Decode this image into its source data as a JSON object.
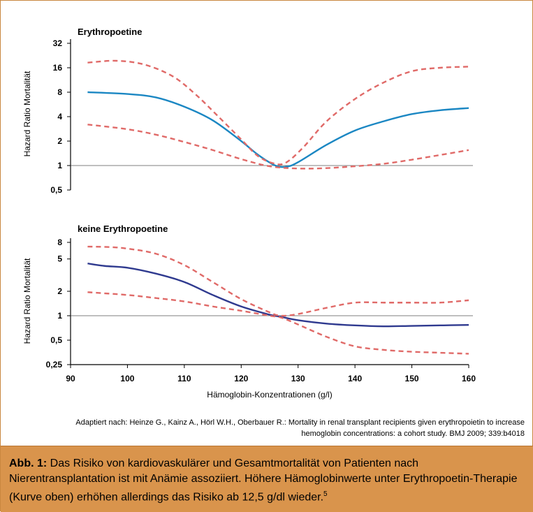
{
  "chart_data": [
    {
      "type": "line",
      "title": "Erythropoetine",
      "ylabel": "Hazard Ratio Mortalität",
      "xlabel": "",
      "yscale": "log2",
      "ylim": [
        0.5,
        32
      ],
      "yticks": [
        "32",
        "16",
        "8",
        "4",
        "2",
        "1",
        "0,5"
      ],
      "ytick_values": [
        32,
        16,
        8,
        4,
        2,
        1,
        0.5
      ],
      "xlim": [
        90,
        160
      ],
      "reference_line": 1,
      "series": [
        {
          "role": "estimate",
          "color": "#1b87c3",
          "style": "solid",
          "x": [
            93,
            100,
            105,
            110,
            115,
            120,
            123,
            126,
            128,
            130,
            135,
            140,
            145,
            150,
            155,
            160
          ],
          "y": [
            8.0,
            7.6,
            6.9,
            5.3,
            3.6,
            2.0,
            1.35,
            1.0,
            0.97,
            1.1,
            1.8,
            2.7,
            3.5,
            4.3,
            4.8,
            5.1
          ]
        },
        {
          "role": "upper CI",
          "color": "#e06a68",
          "style": "dashed",
          "x": [
            93,
            98,
            103,
            108,
            112,
            116,
            120,
            123,
            126,
            128,
            131,
            135,
            140,
            145,
            150,
            155,
            160
          ],
          "y": [
            18.5,
            19.5,
            17.5,
            12.5,
            7.5,
            4.0,
            2.1,
            1.3,
            1.05,
            1.1,
            1.7,
            3.5,
            6.6,
            10.5,
            14.5,
            16.0,
            16.5
          ]
        },
        {
          "role": "lower CI",
          "color": "#e06a68",
          "style": "dashed",
          "x": [
            93,
            100,
            105,
            110,
            115,
            120,
            125,
            130,
            135,
            140,
            145,
            150,
            155,
            160
          ],
          "y": [
            3.2,
            2.8,
            2.4,
            1.95,
            1.55,
            1.2,
            0.98,
            0.92,
            0.93,
            0.98,
            1.05,
            1.18,
            1.35,
            1.55
          ]
        }
      ]
    },
    {
      "type": "line",
      "title": "keine Erythropoetine",
      "ylabel": "Hazard Ratio Mortalität",
      "xlabel": "Hämoglobin-Konzentrationen (g/l)",
      "yscale": "log",
      "ylim": [
        0.25,
        8
      ],
      "yticks": [
        "8",
        "5",
        "2",
        "1",
        "0,5",
        "0,25"
      ],
      "xticks": [
        "90",
        "100",
        "110",
        "120",
        "130",
        "140",
        "150",
        "160"
      ],
      "xlim": [
        90,
        160
      ],
      "reference_line": 1,
      "series": [
        {
          "role": "estimate",
          "color": "#2f3a8f",
          "style": "solid",
          "x": [
            93,
            96,
            100,
            105,
            110,
            115,
            120,
            125,
            127,
            130,
            135,
            140,
            145,
            150,
            155,
            160
          ],
          "y": [
            4.4,
            4.1,
            3.9,
            3.3,
            2.6,
            1.8,
            1.3,
            1.03,
            0.97,
            0.88,
            0.8,
            0.76,
            0.74,
            0.75,
            0.76,
            0.77
          ]
        },
        {
          "role": "upper CI",
          "color": "#e06a68",
          "style": "dashed",
          "x": [
            93,
            97,
            100,
            105,
            110,
            115,
            120,
            125,
            127,
            130,
            135,
            140,
            145,
            150,
            155,
            160
          ],
          "y": [
            7.1,
            7.0,
            6.7,
            5.8,
            4.2,
            2.6,
            1.6,
            1.1,
            1.0,
            1.05,
            1.25,
            1.45,
            1.45,
            1.45,
            1.45,
            1.55
          ]
        },
        {
          "role": "lower CI",
          "color": "#e06a68",
          "style": "dashed",
          "x": [
            93,
            100,
            105,
            110,
            115,
            120,
            125,
            127,
            130,
            135,
            140,
            145,
            150,
            155,
            160
          ],
          "y": [
            1.95,
            1.8,
            1.65,
            1.5,
            1.3,
            1.15,
            1.0,
            0.95,
            0.78,
            0.55,
            0.42,
            0.38,
            0.36,
            0.35,
            0.34
          ]
        }
      ]
    }
  ],
  "source_note": "Adaptiert nach: Heinze G., Kainz A., Hörl W.H., Oberbauer R.: Mortality in renal transplant recipients given erythropoietin to increase hemoglobin concentrations: a cohort study. BMJ 2009; 339:b4018",
  "caption": {
    "label": "Abb. 1:",
    "text": " Das Risiko von kardiovaskulärer und Gesamtmortalität von Patienten nach Nierentransplantation ist mit Anämie assoziiert. Höhere Hämoglobinwerte unter Erythropoetin-Therapie (Kurve oben) erhöhen allerdings das Risiko ab 12,5 g/dl wieder.",
    "footnote": "5"
  },
  "colors": {
    "caption_bg": "#d9944c",
    "frame": "#c9873f",
    "ci_dashed": "#e06a68",
    "top_estimate": "#1b87c3",
    "bottom_estimate": "#2f3a8f"
  }
}
